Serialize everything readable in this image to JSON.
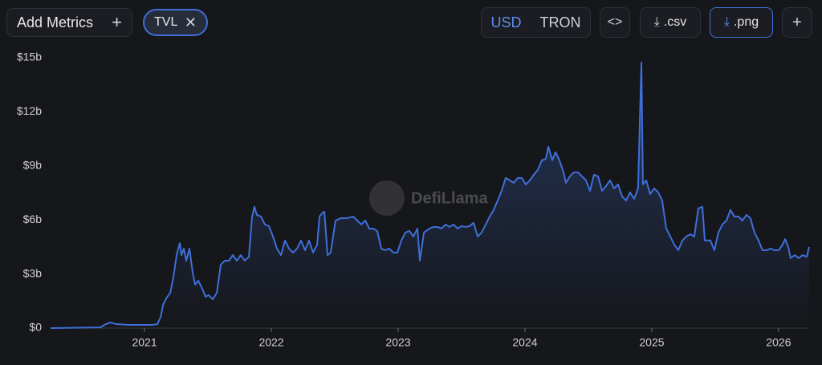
{
  "toolbar": {
    "add_metrics": "Add Metrics",
    "metric": "TVL",
    "currencies": [
      "USD",
      "TRON"
    ],
    "csv": ".csv",
    "png": ".png"
  },
  "chart_data": {
    "type": "line",
    "watermark": "DefiLlama",
    "color": "#3f6fd8",
    "x": [
      2020.259,
      2020.652,
      2020.684,
      2020.728,
      2020.778,
      2020.873,
      2021.063,
      2021.101,
      2021.127,
      2021.146,
      2021.171,
      2021.203,
      2021.228,
      2021.253,
      2021.278,
      2021.291,
      2021.31,
      2021.329,
      2021.354,
      2021.38,
      2021.399,
      2021.424,
      2021.456,
      2021.481,
      2021.506,
      2021.538,
      2021.57,
      2021.601,
      2021.633,
      2021.665,
      2021.696,
      2021.728,
      2021.759,
      2021.791,
      2021.823,
      2021.848,
      2021.867,
      2021.886,
      2021.918,
      2021.949,
      2021.981,
      2022.013,
      2022.044,
      2022.076,
      2022.108,
      2022.139,
      2022.171,
      2022.203,
      2022.234,
      2022.266,
      2022.297,
      2022.329,
      2022.361,
      2022.38,
      2022.405,
      2022.418,
      2022.443,
      2022.468,
      2022.506,
      2022.551,
      2022.595,
      2022.646,
      2022.677,
      2022.709,
      2022.741,
      2022.772,
      2022.804,
      2022.835,
      2022.867,
      2022.899,
      2022.93,
      2022.962,
      2022.994,
      2023.025,
      2023.057,
      2023.089,
      2023.12,
      2023.152,
      2023.171,
      2023.203,
      2023.247,
      2023.278,
      2023.31,
      2023.342,
      2023.373,
      2023.405,
      2023.437,
      2023.468,
      2023.5,
      2023.532,
      2023.563,
      2023.595,
      2023.627,
      2023.658,
      2023.69,
      2023.722,
      2023.753,
      2023.785,
      2023.816,
      2023.848,
      2023.88,
      2023.911,
      2023.943,
      2023.975,
      2024.006,
      2024.038,
      2024.07,
      2024.101,
      2024.133,
      2024.165,
      2024.184,
      2024.215,
      2024.241,
      2024.272,
      2024.304,
      2024.323,
      2024.354,
      2024.386,
      2024.418,
      2024.449,
      2024.481,
      2024.513,
      2024.544,
      2024.576,
      2024.608,
      2024.639,
      2024.671,
      2024.703,
      2024.734,
      2024.766,
      2024.797,
      2024.829,
      2024.861,
      2024.892,
      2024.918,
      2024.93,
      2024.956,
      2024.987,
      2025.019,
      2025.051,
      2025.082,
      2025.114,
      2025.146,
      2025.177,
      2025.209,
      2025.241,
      2025.272,
      2025.304,
      2025.335,
      2025.367,
      2025.399,
      2025.418,
      2025.462,
      2025.494,
      2025.525,
      2025.557,
      2025.589,
      2025.62,
      2025.652,
      2025.684,
      2025.715,
      2025.747,
      2025.778,
      2025.81,
      2025.842,
      2025.873,
      2025.905,
      2025.937,
      2025.968,
      2026.0,
      2026.032,
      2026.051,
      2026.076,
      2026.095,
      2026.127,
      2026.158,
      2026.19,
      2026.222,
      2026.241
    ],
    "values": [
      0,
      0.04,
      0.18,
      0.31,
      0.22,
      0.18,
      0.18,
      0.22,
      0.62,
      1.29,
      1.65,
      1.96,
      2.85,
      4.05,
      4.72,
      4.05,
      4.41,
      3.74,
      4.41,
      3.07,
      2.41,
      2.63,
      2.18,
      1.74,
      1.83,
      1.6,
      1.96,
      3.52,
      3.74,
      3.74,
      4.05,
      3.74,
      4.05,
      3.74,
      3.96,
      6.19,
      6.73,
      6.28,
      6.19,
      5.75,
      5.66,
      5.08,
      4.41,
      4.05,
      4.86,
      4.41,
      4.19,
      4.41,
      4.86,
      4.32,
      4.86,
      4.19,
      4.63,
      6.19,
      6.41,
      6.46,
      4.05,
      4.19,
      5.97,
      6.1,
      6.1,
      6.19,
      5.97,
      5.75,
      5.97,
      5.52,
      5.52,
      5.39,
      4.41,
      4.32,
      4.41,
      4.19,
      4.19,
      4.86,
      5.3,
      5.39,
      5.08,
      5.52,
      3.74,
      5.3,
      5.52,
      5.61,
      5.61,
      5.52,
      5.75,
      5.61,
      5.75,
      5.52,
      5.66,
      5.61,
      5.66,
      5.84,
      5.08,
      5.3,
      5.75,
      6.19,
      6.55,
      7.08,
      7.62,
      8.33,
      8.2,
      8.06,
      8.33,
      8.33,
      7.97,
      8.2,
      8.51,
      8.78,
      9.31,
      9.4,
      10.07,
      9.31,
      9.76,
      9.31,
      8.64,
      8.06,
      8.42,
      8.64,
      8.64,
      8.42,
      8.2,
      7.62,
      8.51,
      8.42,
      7.62,
      7.88,
      8.2,
      7.75,
      7.97,
      7.31,
      7.08,
      7.53,
      7.17,
      7.75,
      14.74,
      7.97,
      8.2,
      7.44,
      7.75,
      7.53,
      7.08,
      5.52,
      5.08,
      4.63,
      4.32,
      4.86,
      5.08,
      5.21,
      5.08,
      6.64,
      6.73,
      4.86,
      4.86,
      4.32,
      5.3,
      5.75,
      5.97,
      6.55,
      6.19,
      6.19,
      5.97,
      6.28,
      6.1,
      5.3,
      4.86,
      4.32,
      4.32,
      4.41,
      4.32,
      4.32,
      4.63,
      4.94,
      4.5,
      3.88,
      4.05,
      3.88,
      4.05,
      3.96,
      4.5
    ],
    "xlim": [
      2020.259,
      2026.241
    ],
    "xticks": [
      2021,
      2022,
      2023,
      2024,
      2025,
      2026
    ],
    "ylim": [
      0,
      15
    ],
    "yticks": [
      {
        "value": 0,
        "label": "$0"
      },
      {
        "value": 3,
        "label": "$3b"
      },
      {
        "value": 6,
        "label": "$6b"
      },
      {
        "value": 9,
        "label": "$9b"
      },
      {
        "value": 12,
        "label": "$12b"
      },
      {
        "value": 15,
        "label": "$15b"
      }
    ]
  }
}
